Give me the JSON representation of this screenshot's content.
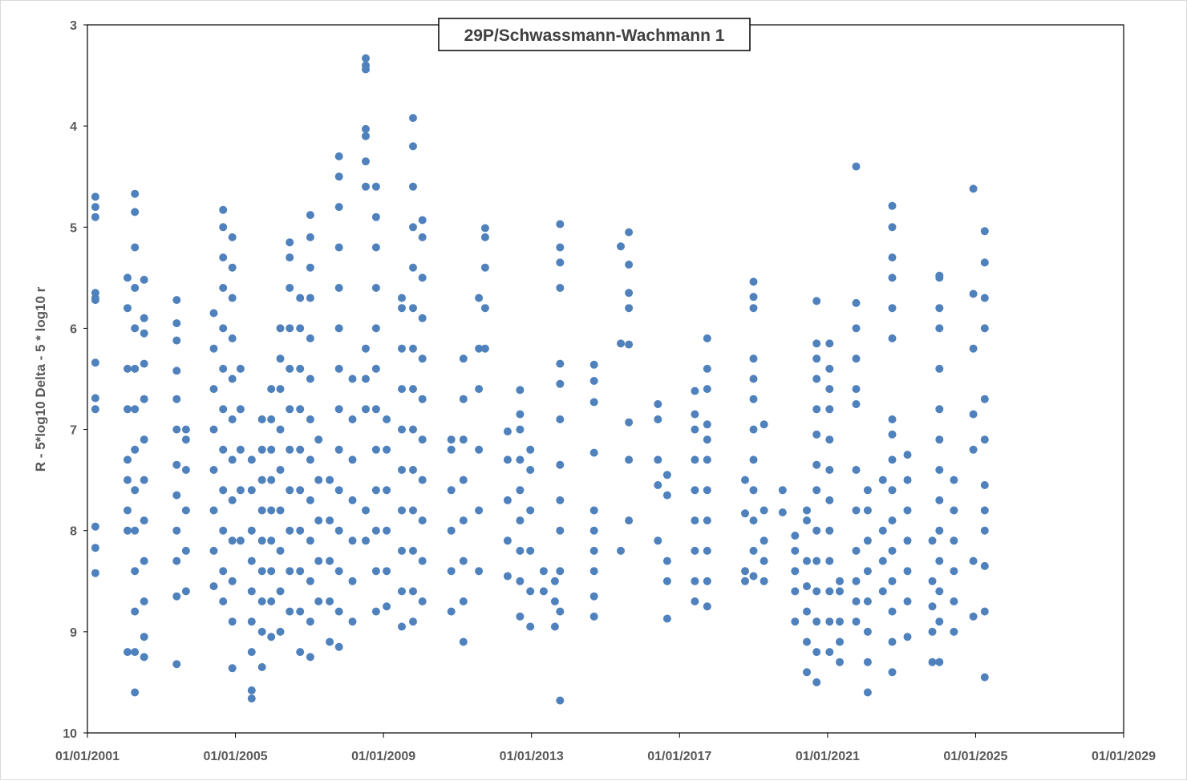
{
  "chart_data": {
    "type": "scatter",
    "title": "29P/Schwassmann-Wachmann 1",
    "xlabel": "",
    "ylabel": "R - 5*log10 Delta - 5 * log10 r",
    "x_type": "date",
    "x_format": "dd/mm/yyyy",
    "xlim": [
      "01/01/2001",
      "01/01/2029"
    ],
    "xticks": [
      "01/01/2001",
      "01/01/2005",
      "01/01/2009",
      "01/01/2013",
      "01/01/2017",
      "01/01/2021",
      "01/01/2025",
      "01/01/2029"
    ],
    "ylim": [
      3,
      10
    ],
    "y_reversed": true,
    "yticks": [
      "3",
      "4",
      "5",
      "6",
      "7",
      "8",
      "9",
      "10"
    ],
    "grid": false,
    "legend": "none",
    "marker_color": "#4F81BD",
    "series": [
      {
        "clusters": [
          {
            "date": "2001-03-20",
            "values": [
              8.42,
              8.17,
              7.96,
              6.8,
              6.69,
              6.34,
              5.72,
              5.7,
              5.65,
              4.9,
              4.8,
              4.7
            ]
          },
          {
            "date": "2002-02-01",
            "values": [
              8.0,
              7.8,
              7.5,
              7.3,
              6.8,
              6.4,
              5.8,
              5.5,
              9.2
            ]
          },
          {
            "date": "2002-04-15",
            "values": [
              9.6,
              9.2,
              8.8,
              8.4,
              8.0,
              7.6,
              7.2,
              6.8,
              6.4,
              6.0,
              5.6,
              5.2,
              4.85,
              4.67
            ]
          },
          {
            "date": "2002-07-15",
            "values": [
              9.25,
              9.05,
              8.7,
              8.3,
              7.9,
              7.5,
              7.1,
              6.7,
              6.35,
              6.05,
              5.9,
              5.52
            ]
          },
          {
            "date": "2003-06-01",
            "values": [
              9.32,
              8.65,
              8.3,
              8.0,
              7.65,
              7.35,
              7.0,
              6.7,
              6.42,
              6.12,
              5.95,
              5.72
            ]
          },
          {
            "date": "2003-09-01",
            "values": [
              8.6,
              8.2,
              7.8,
              7.4,
              7.1,
              7.0
            ]
          },
          {
            "date": "2004-06-01",
            "values": [
              8.55,
              8.2,
              7.8,
              7.4,
              7.0,
              6.6,
              6.2,
              5.85
            ]
          },
          {
            "date": "2004-09-01",
            "values": [
              8.7,
              8.4,
              8.0,
              7.6,
              7.2,
              6.8,
              6.4,
              6.0,
              5.6,
              5.3,
              5.0,
              4.83
            ]
          },
          {
            "date": "2004-12-01",
            "values": [
              9.36,
              8.9,
              8.5,
              8.1,
              7.7,
              7.3,
              6.9,
              6.5,
              6.1,
              5.7,
              5.4,
              5.1
            ]
          },
          {
            "date": "2005-02-20",
            "values": [
              8.1,
              7.6,
              7.2,
              6.8,
              6.4
            ]
          },
          {
            "date": "2005-06-10",
            "values": [
              9.66,
              9.58,
              9.2,
              8.9,
              8.6,
              8.3,
              8.0,
              7.6,
              7.3
            ]
          },
          {
            "date": "2005-09-20",
            "values": [
              9.35,
              9.0,
              8.7,
              8.4,
              8.1,
              7.8,
              7.5,
              7.2,
              6.9
            ]
          },
          {
            "date": "2005-12-20",
            "values": [
              9.05,
              8.7,
              8.4,
              8.1,
              7.8,
              7.5,
              7.2,
              6.9,
              6.6
            ]
          },
          {
            "date": "2006-03-20",
            "values": [
              9.0,
              8.6,
              8.2,
              7.8,
              7.4,
              7.0,
              6.6,
              6.3,
              6.0
            ]
          },
          {
            "date": "2006-06-20",
            "values": [
              8.8,
              8.4,
              8.0,
              7.6,
              7.2,
              6.8,
              6.4,
              6.0,
              5.6,
              5.3,
              5.15
            ]
          },
          {
            "date": "2006-10-01",
            "values": [
              9.2,
              8.8,
              8.4,
              8.0,
              7.6,
              7.2,
              6.8,
              6.4,
              6.0,
              5.7
            ]
          },
          {
            "date": "2007-01-10",
            "values": [
              9.25,
              8.9,
              8.5,
              8.1,
              7.7,
              7.3,
              6.9,
              6.5,
              6.1,
              5.7,
              5.4,
              5.1,
              4.88
            ]
          },
          {
            "date": "2007-04-01",
            "values": [
              8.7,
              8.3,
              7.9,
              7.5,
              7.1
            ]
          },
          {
            "date": "2007-07-20",
            "values": [
              9.1,
              8.7,
              8.3,
              7.9,
              7.5
            ]
          },
          {
            "date": "2007-10-20",
            "values": [
              9.15,
              8.8,
              8.4,
              8.0,
              7.6,
              7.2,
              6.8,
              6.4,
              6.0,
              5.6,
              5.2,
              4.8,
              4.5,
              4.3
            ]
          },
          {
            "date": "2008-03-01",
            "values": [
              8.9,
              8.5,
              8.1,
              7.7,
              7.3,
              6.9,
              6.5
            ]
          },
          {
            "date": "2008-07-10",
            "values": [
              8.1,
              7.8,
              6.8,
              6.5,
              6.2,
              4.6,
              4.35,
              4.1,
              4.03,
              3.44,
              3.4,
              3.33
            ]
          },
          {
            "date": "2008-10-20",
            "values": [
              8.8,
              8.4,
              8.0,
              7.6,
              7.2,
              6.8,
              6.4,
              6.0,
              5.6,
              5.2,
              4.9,
              4.6
            ]
          },
          {
            "date": "2009-02-01",
            "values": [
              8.75,
              8.4,
              8.0,
              7.6,
              7.2,
              6.9
            ]
          },
          {
            "date": "2009-07-01",
            "values": [
              8.95,
              8.6,
              8.2,
              7.8,
              7.4,
              7.0,
              6.6,
              6.2,
              5.8,
              5.7
            ]
          },
          {
            "date": "2009-10-20",
            "values": [
              8.9,
              8.6,
              8.2,
              7.8,
              7.4,
              7.0,
              6.6,
              6.2,
              5.8,
              5.4,
              5.0,
              4.6,
              4.2,
              3.92
            ]
          },
          {
            "date": "2010-01-20",
            "values": [
              8.7,
              8.3,
              7.9,
              7.5,
              7.1,
              6.7,
              6.3,
              5.9,
              5.5,
              5.1,
              4.93
            ]
          },
          {
            "date": "2010-11-01",
            "values": [
              8.8,
              8.4,
              8.0,
              7.6,
              7.2,
              7.1
            ]
          },
          {
            "date": "2011-03-01",
            "values": [
              9.1,
              8.7,
              8.3,
              7.9,
              7.5,
              7.1,
              6.7,
              6.3
            ]
          },
          {
            "date": "2011-08-01",
            "values": [
              8.4,
              7.8,
              7.2,
              6.6,
              6.2,
              5.7
            ]
          },
          {
            "date": "2011-10-01",
            "values": [
              6.2,
              5.8,
              5.4,
              5.1,
              5.01
            ]
          },
          {
            "date": "2012-05-10",
            "values": [
              8.45,
              8.1,
              7.7,
              7.3,
              7.02
            ]
          },
          {
            "date": "2012-09-10",
            "values": [
              8.85,
              8.5,
              8.2,
              7.9,
              7.6,
              7.3,
              7.0,
              6.85,
              6.61
            ]
          },
          {
            "date": "2012-12-20",
            "values": [
              8.95,
              8.6,
              8.2,
              7.8,
              7.4,
              7.2
            ]
          },
          {
            "date": "2013-05-01",
            "values": [
              8.4,
              8.6
            ]
          },
          {
            "date": "2013-08-20",
            "values": [
              8.95,
              8.7,
              8.5
            ]
          },
          {
            "date": "2013-10-10",
            "values": [
              9.68,
              8.8,
              8.4,
              8.0,
              7.7,
              7.35,
              6.9,
              6.55,
              6.35,
              5.6,
              5.35,
              5.2,
              4.97
            ]
          },
          {
            "date": "2014-09-10",
            "values": [
              8.85,
              8.65,
              8.4,
              8.2,
              8.0,
              7.8,
              7.23,
              6.73,
              6.52,
              6.36
            ]
          },
          {
            "date": "2015-06-01",
            "values": [
              8.2,
              6.15,
              5.19
            ]
          },
          {
            "date": "2015-08-20",
            "values": [
              7.9,
              7.3,
              6.93,
              6.16,
              5.8,
              5.65,
              5.37,
              5.05
            ]
          },
          {
            "date": "2016-06-01",
            "values": [
              8.1,
              7.55,
              7.3,
              6.9,
              6.75
            ]
          },
          {
            "date": "2016-09-01",
            "values": [
              8.87,
              8.5,
              8.3,
              7.65,
              7.45
            ]
          },
          {
            "date": "2017-06-01",
            "values": [
              8.7,
              8.5,
              8.2,
              7.9,
              7.6,
              7.3,
              7.0,
              6.85,
              6.62
            ]
          },
          {
            "date": "2017-10-01",
            "values": [
              8.75,
              8.5,
              8.2,
              7.9,
              7.6,
              7.3,
              7.1,
              6.95,
              6.6,
              6.4,
              6.1
            ]
          },
          {
            "date": "2018-10-10",
            "values": [
              8.5,
              8.4,
              7.83,
              7.5
            ]
          },
          {
            "date": "2019-01-01",
            "values": [
              8.45,
              8.2,
              7.9,
              7.6,
              7.3,
              7.0,
              6.7,
              6.5,
              6.3,
              5.8,
              5.69,
              5.54
            ]
          },
          {
            "date": "2019-04-15",
            "values": [
              8.5,
              8.3,
              8.1,
              7.8,
              6.95
            ]
          },
          {
            "date": "2019-10-15",
            "values": [
              7.82,
              7.6
            ]
          },
          {
            "date": "2020-02-15",
            "values": [
              8.9,
              8.6,
              8.4,
              8.2,
              8.05
            ]
          },
          {
            "date": "2020-06-10",
            "values": [
              9.4,
              9.1,
              8.8,
              8.55,
              8.3,
              7.9,
              7.8
            ]
          },
          {
            "date": "2020-09-15",
            "values": [
              9.5,
              9.2,
              8.9,
              8.6,
              8.3,
              8.0,
              7.6,
              7.35,
              7.05,
              6.8,
              6.5,
              6.3,
              6.15,
              5.73
            ]
          },
          {
            "date": "2021-01-20",
            "values": [
              9.2,
              8.9,
              8.6,
              8.3,
              8.0,
              7.7,
              7.4,
              7.1,
              6.8,
              6.6,
              6.4,
              6.15
            ]
          },
          {
            "date": "2021-05-01",
            "values": [
              9.3,
              9.1,
              8.9,
              8.6,
              8.5
            ]
          },
          {
            "date": "2021-10-10",
            "values": [
              8.9,
              8.7,
              8.5,
              8.2,
              7.8,
              7.4,
              6.75,
              6.6,
              6.3,
              6.0,
              5.75,
              4.4
            ]
          },
          {
            "date": "2022-02-01",
            "values": [
              9.6,
              9.3,
              9.0,
              8.7,
              8.4,
              8.1,
              7.8,
              7.6
            ]
          },
          {
            "date": "2022-07-01",
            "values": [
              8.6,
              8.3,
              8.0,
              7.5
            ]
          },
          {
            "date": "2022-10-01",
            "values": [
              9.4,
              9.1,
              8.8,
              8.5,
              8.2,
              7.9,
              7.6,
              7.3,
              7.05,
              6.9,
              6.1,
              5.8,
              5.5,
              5.3,
              5.0,
              4.79
            ]
          },
          {
            "date": "2023-03-01",
            "values": [
              9.05,
              8.7,
              8.4,
              8.1,
              7.8,
              7.5,
              7.25
            ]
          },
          {
            "date": "2023-11-01",
            "values": [
              9.3,
              9.0,
              8.75,
              8.5,
              8.1
            ]
          },
          {
            "date": "2024-01-10",
            "values": [
              9.3,
              8.9,
              8.6,
              8.3,
              8.0,
              7.7,
              7.4,
              7.1,
              6.8,
              6.4,
              6.0,
              5.8,
              5.5,
              5.48
            ]
          },
          {
            "date": "2024-06-01",
            "values": [
              9.0,
              8.7,
              8.4,
              8.1,
              7.8,
              7.5
            ]
          },
          {
            "date": "2024-12-10",
            "values": [
              8.85,
              8.3,
              7.2,
              6.85,
              6.2,
              5.66,
              4.62
            ]
          },
          {
            "date": "2025-04-01",
            "values": [
              9.45,
              8.8,
              8.35,
              8.0,
              7.8,
              7.55,
              7.1,
              6.7,
              6.0,
              5.7,
              5.35,
              5.04
            ]
          }
        ]
      }
    ]
  }
}
